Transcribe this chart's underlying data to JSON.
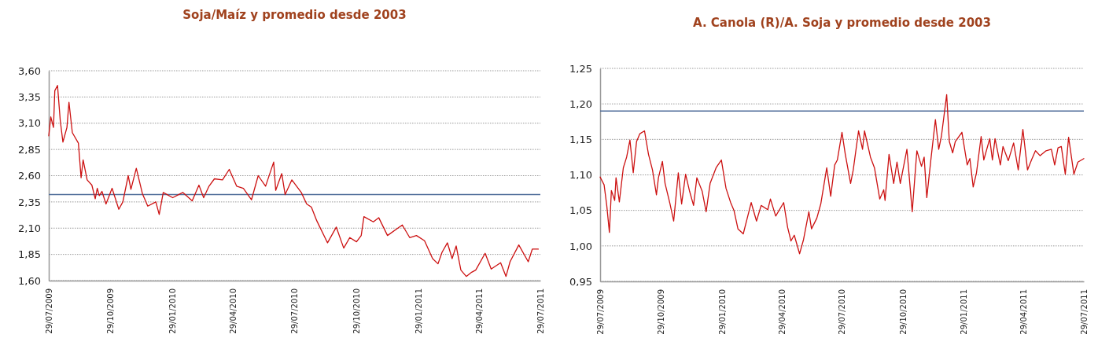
{
  "chart_data": [
    {
      "type": "line",
      "title": "Soja/Maíz y promedio desde 2003",
      "x": [
        "2009-07-29",
        "2009-08-01",
        "2009-08-05",
        "2009-08-07",
        "2009-08-11",
        "2009-08-15",
        "2009-08-19",
        "2009-08-25",
        "2009-08-28",
        "2009-09-02",
        "2009-09-11",
        "2009-09-15",
        "2009-09-18",
        "2009-09-24",
        "2009-10-01",
        "2009-10-06",
        "2009-10-09",
        "2009-10-12",
        "2009-10-16",
        "2009-10-22",
        "2009-10-31",
        "2009-11-10",
        "2009-11-16",
        "2009-11-24",
        "2009-11-28",
        "2009-12-06",
        "2009-12-15",
        "2009-12-23",
        "2010-01-04",
        "2010-01-09",
        "2010-01-15",
        "2010-01-29",
        "2010-02-13",
        "2010-02-27",
        "2010-03-09",
        "2010-03-16",
        "2010-03-24",
        "2010-04-01",
        "2010-04-13",
        "2010-04-23",
        "2010-05-04",
        "2010-05-14",
        "2010-05-26",
        "2010-06-05",
        "2010-06-16",
        "2010-06-28",
        "2010-07-01",
        "2010-07-10",
        "2010-07-15",
        "2010-07-25",
        "2010-08-08",
        "2010-08-16",
        "2010-08-23",
        "2010-08-31",
        "2010-09-16",
        "2010-09-29",
        "2010-10-10",
        "2010-10-19",
        "2010-10-29",
        "2010-11-05",
        "2010-11-09",
        "2010-11-23",
        "2010-12-01",
        "2010-12-14",
        "2011-01-05",
        "2011-01-16",
        "2011-01-26",
        "2011-02-07",
        "2011-02-19",
        "2011-02-27",
        "2011-03-05",
        "2011-03-13",
        "2011-03-20",
        "2011-03-26",
        "2011-04-02",
        "2011-04-10",
        "2011-04-18",
        "2011-04-24",
        "2011-05-08",
        "2011-05-17",
        "2011-05-31",
        "2011-06-08",
        "2011-06-14",
        "2011-06-27",
        "2011-07-11",
        "2011-07-17",
        "2011-07-26"
      ],
      "series": [
        {
          "color": "#cc1111",
          "values": [
            2.98,
            3.16,
            3.06,
            3.41,
            3.46,
            3.13,
            2.92,
            3.06,
            3.3,
            3.01,
            2.91,
            2.58,
            2.75,
            2.56,
            2.51,
            2.38,
            2.48,
            2.41,
            2.45,
            2.33,
            2.48,
            2.28,
            2.35,
            2.6,
            2.47,
            2.67,
            2.43,
            2.31,
            2.35,
            2.23,
            2.44,
            2.39,
            2.44,
            2.36,
            2.51,
            2.39,
            2.5,
            2.57,
            2.56,
            2.66,
            2.5,
            2.48,
            2.37,
            2.6,
            2.5,
            2.73,
            2.46,
            2.62,
            2.42,
            2.56,
            2.44,
            2.33,
            2.3,
            2.17,
            1.96,
            2.11,
            1.91,
            2.01,
            1.97,
            2.03,
            2.21,
            2.16,
            2.2,
            2.03,
            2.13,
            2.01,
            2.03,
            1.98,
            1.81,
            1.76,
            1.87,
            1.96,
            1.81,
            1.93,
            1.7,
            1.64,
            1.68,
            1.7,
            1.86,
            1.71,
            1.77,
            1.64,
            1.78,
            1.94,
            1.78,
            1.9,
            1.9
          ]
        }
      ],
      "xlim": [
        "2009-07-29",
        "2011-07-29"
      ],
      "xticks": [
        {
          "value": "2009-07-29",
          "label": "29/07/2009"
        },
        {
          "value": "2009-10-29",
          "label": "29/10/2009"
        },
        {
          "value": "2010-01-29",
          "label": "29/01/2010"
        },
        {
          "value": "2010-04-29",
          "label": "29/04/2010"
        },
        {
          "value": "2010-07-29",
          "label": "29/07/2010"
        },
        {
          "value": "2010-10-29",
          "label": "29/10/2010"
        },
        {
          "value": "2011-01-29",
          "label": "29/01/2011"
        },
        {
          "value": "2011-04-29",
          "label": "29/04/2011"
        },
        {
          "value": "2011-07-29",
          "label": "29/07/2011"
        }
      ],
      "ylim": [
        1.6,
        3.6
      ],
      "yticks": [
        {
          "value": 1.6,
          "label": "1,60"
        },
        {
          "value": 1.85,
          "label": "1,85"
        },
        {
          "value": 2.1,
          "label": "2,10"
        },
        {
          "value": 2.35,
          "label": "2,35"
        },
        {
          "value": 2.6,
          "label": "2,60"
        },
        {
          "value": 2.85,
          "label": "2,85"
        },
        {
          "value": 3.1,
          "label": "3,10"
        },
        {
          "value": 3.35,
          "label": "3,35"
        },
        {
          "value": 3.6,
          "label": "3,60"
        }
      ],
      "grid": "y",
      "ref_lines": [
        {
          "axis": "y",
          "value": 2.42,
          "color": "#4f6d99"
        }
      ]
    },
    {
      "type": "line",
      "title": "A. Canola (R)/A. Soja y promedio desde 2003",
      "x": [
        "2009-07-29",
        "2009-08-04",
        "2009-08-08",
        "2009-08-12",
        "2009-08-15",
        "2009-08-20",
        "2009-08-22",
        "2009-08-27",
        "2009-09-02",
        "2009-09-07",
        "2009-09-12",
        "2009-09-17",
        "2009-09-22",
        "2009-09-27",
        "2009-10-04",
        "2009-10-10",
        "2009-10-16",
        "2009-10-22",
        "2009-10-25",
        "2009-10-31",
        "2009-11-04",
        "2009-11-11",
        "2009-11-17",
        "2009-11-24",
        "2009-11-29",
        "2009-12-05",
        "2009-12-11",
        "2009-12-17",
        "2009-12-22",
        "2009-12-30",
        "2010-01-05",
        "2010-01-11",
        "2010-01-20",
        "2010-01-28",
        "2010-02-04",
        "2010-02-11",
        "2010-02-16",
        "2010-02-22",
        "2010-03-02",
        "2010-03-08",
        "2010-03-14",
        "2010-03-22",
        "2010-03-29",
        "2010-04-08",
        "2010-04-12",
        "2010-04-20",
        "2010-05-02",
        "2010-05-08",
        "2010-05-13",
        "2010-05-18",
        "2010-05-26",
        "2010-06-01",
        "2010-06-09",
        "2010-06-13",
        "2010-06-21",
        "2010-06-27",
        "2010-07-06",
        "2010-07-12",
        "2010-07-18",
        "2010-07-22",
        "2010-07-29",
        "2010-08-03",
        "2010-08-11",
        "2010-08-15",
        "2010-08-23",
        "2010-08-29",
        "2010-09-01",
        "2010-09-10",
        "2010-09-16",
        "2010-09-24",
        "2010-09-30",
        "2010-10-02",
        "2010-10-08",
        "2010-10-15",
        "2010-10-20",
        "2010-10-25",
        "2010-11-04",
        "2010-11-12",
        "2010-11-19",
        "2010-11-26",
        "2010-11-30",
        "2010-12-04",
        "2010-12-10",
        "2010-12-17",
        "2010-12-22",
        "2010-12-26",
        "2011-01-03",
        "2011-01-07",
        "2011-01-12",
        "2011-01-16",
        "2011-01-26",
        "2011-02-03",
        "2011-02-07",
        "2011-02-12",
        "2011-02-17",
        "2011-02-24",
        "2011-02-28",
        "2011-03-09",
        "2011-03-13",
        "2011-03-17",
        "2011-03-25",
        "2011-03-29",
        "2011-04-06",
        "2011-04-14",
        "2011-04-21",
        "2011-04-28",
        "2011-05-05",
        "2011-05-11",
        "2011-05-17",
        "2011-05-24",
        "2011-06-02",
        "2011-06-10",
        "2011-06-15",
        "2011-06-20",
        "2011-06-25",
        "2011-07-01",
        "2011-07-06",
        "2011-07-14",
        "2011-07-20",
        "2011-07-29"
      ],
      "series": [
        {
          "color": "#cc1111",
          "values": [
            1.097,
            1.086,
            1.057,
            1.019,
            1.078,
            1.064,
            1.096,
            1.062,
            1.11,
            1.125,
            1.149,
            1.103,
            1.147,
            1.158,
            1.162,
            1.129,
            1.107,
            1.072,
            1.096,
            1.119,
            1.088,
            1.061,
            1.035,
            1.103,
            1.059,
            1.101,
            1.077,
            1.057,
            1.096,
            1.077,
            1.048,
            1.088,
            1.11,
            1.121,
            1.081,
            1.061,
            1.05,
            1.024,
            1.017,
            1.039,
            1.061,
            1.035,
            1.057,
            1.051,
            1.066,
            1.042,
            1.061,
            1.026,
            1.007,
            1.015,
            0.989,
            1.009,
            1.048,
            1.024,
            1.039,
            1.059,
            1.11,
            1.07,
            1.114,
            1.121,
            1.16,
            1.129,
            1.088,
            1.107,
            1.162,
            1.136,
            1.162,
            1.125,
            1.11,
            1.066,
            1.079,
            1.064,
            1.129,
            1.088,
            1.118,
            1.088,
            1.136,
            1.048,
            1.134,
            1.112,
            1.125,
            1.068,
            1.12,
            1.178,
            1.136,
            1.154,
            1.213,
            1.147,
            1.131,
            1.147,
            1.16,
            1.114,
            1.123,
            1.083,
            1.103,
            1.154,
            1.121,
            1.151,
            1.121,
            1.151,
            1.114,
            1.14,
            1.12,
            1.145,
            1.107,
            1.164,
            1.107,
            1.121,
            1.134,
            1.127,
            1.134,
            1.136,
            1.114,
            1.138,
            1.14,
            1.101,
            1.153,
            1.101,
            1.118,
            1.123
          ]
        }
      ],
      "xlim": [
        "2009-07-29",
        "2011-07-29"
      ],
      "xticks": [
        {
          "value": "2009-07-29",
          "label": "29/07/2009"
        },
        {
          "value": "2009-10-29",
          "label": "29/10/2009"
        },
        {
          "value": "2010-01-29",
          "label": "29/01/2010"
        },
        {
          "value": "2010-04-29",
          "label": "29/04/2010"
        },
        {
          "value": "2010-07-29",
          "label": "29/07/2010"
        },
        {
          "value": "2010-10-29",
          "label": "29/10/2010"
        },
        {
          "value": "2011-01-29",
          "label": "29/01/2011"
        },
        {
          "value": "2011-04-29",
          "label": "29/04/2011"
        },
        {
          "value": "2011-07-29",
          "label": "29/07/2011"
        }
      ],
      "ylim": [
        0.95,
        1.25
      ],
      "yticks": [
        {
          "value": 0.95,
          "label": "0,95"
        },
        {
          "value": 1.0,
          "label": "1,00"
        },
        {
          "value": 1.05,
          "label": "1,05"
        },
        {
          "value": 1.1,
          "label": "1,10"
        },
        {
          "value": 1.15,
          "label": "1,15"
        },
        {
          "value": 1.2,
          "label": "1,20"
        },
        {
          "value": 1.25,
          "label": "1,25"
        }
      ],
      "grid": "y",
      "ref_lines": [
        {
          "axis": "y",
          "value": 1.19,
          "color": "#4f6d99"
        }
      ]
    }
  ]
}
